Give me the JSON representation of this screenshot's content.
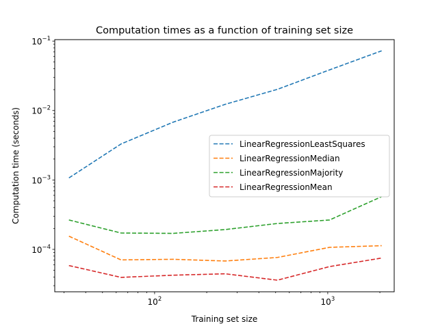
{
  "chart_data": {
    "type": "line",
    "title": "Computation times as a function of training set size",
    "xlabel": "Training set size",
    "ylabel": "Computation time (seconds)",
    "xscale": "log",
    "yscale": "log",
    "xlim": [
      26.5,
      2420
    ],
    "ylim": [
      2.45e-05,
      0.105
    ],
    "x": [
      32,
      64,
      128,
      256,
      512,
      1024,
      2048
    ],
    "x_ticks": [
      {
        "value": 100,
        "base": "10",
        "exp": "2"
      },
      {
        "value": 1000,
        "base": "10",
        "exp": "3"
      }
    ],
    "y_ticks": [
      {
        "value": 0.0001,
        "base": "10",
        "exp": "−4"
      },
      {
        "value": 0.001,
        "base": "10",
        "exp": "−3"
      },
      {
        "value": 0.01,
        "base": "10",
        "exp": "−2"
      },
      {
        "value": 0.1,
        "base": "10",
        "exp": "−1"
      }
    ],
    "line_style": "dashed",
    "grid": false,
    "legend_position": "center-right",
    "series": [
      {
        "name": "LinearRegressionLeastSquares",
        "color": "#1f77b4",
        "values": [
          0.00107,
          0.0033,
          0.0068,
          0.0123,
          0.0202,
          0.0385,
          0.0725
        ]
      },
      {
        "name": "LinearRegressionMedian",
        "color": "#ff7f0e",
        "values": [
          0.000155,
          7.05e-05,
          7.2e-05,
          6.8e-05,
          7.65e-05,
          0.000107,
          0.000113
        ]
      },
      {
        "name": "LinearRegressionMajority",
        "color": "#2ca02c",
        "values": [
          0.000265,
          0.000172,
          0.00017,
          0.000193,
          0.000236,
          0.000265,
          0.000575
        ]
      },
      {
        "name": "LinearRegressionMean",
        "color": "#d62728",
        "values": [
          5.85e-05,
          3.95e-05,
          4.25e-05,
          4.45e-05,
          3.6e-05,
          5.65e-05,
          7.5e-05
        ]
      }
    ]
  }
}
